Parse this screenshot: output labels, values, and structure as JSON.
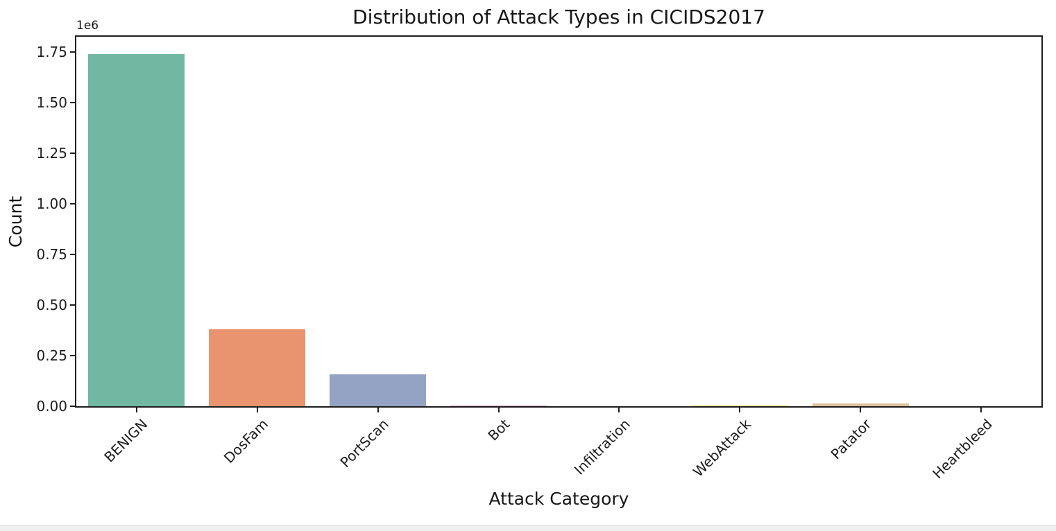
{
  "page": {
    "background": "#ffffff",
    "bottom_strip_color": "#efefef"
  },
  "chart_data": {
    "type": "bar",
    "title": "Distribution of Attack Types in CICIDS2017",
    "xlabel": "Attack Category",
    "ylabel": "Count",
    "y_offset_label": "1e6",
    "categories": [
      "BENIGN",
      "DosFam",
      "PortScan",
      "Bot",
      "Infiltration",
      "WebAttack",
      "Patator",
      "Heartbleed"
    ],
    "values": [
      1740000,
      380688,
      158930,
      1966,
      36,
      2180,
      13835,
      11
    ],
    "bar_colors": [
      "#71b7a1",
      "#e9946f",
      "#94a3c4",
      "#d996c1",
      "#b5cf6b",
      "#e6cf5a",
      "#dcc29a",
      "#b3b3b3"
    ],
    "ylim": [
      0,
      1825000
    ],
    "ytick_values": [
      0,
      250000,
      500000,
      750000,
      1000000,
      1250000,
      1500000,
      1750000
    ],
    "ytick_labels": [
      "0.00",
      "0.25",
      "0.50",
      "0.75",
      "1.00",
      "1.25",
      "1.50",
      "1.75"
    ],
    "xtick_rotation_deg": 45,
    "bar_rel_width": 0.8,
    "grid": false,
    "legend": null
  }
}
